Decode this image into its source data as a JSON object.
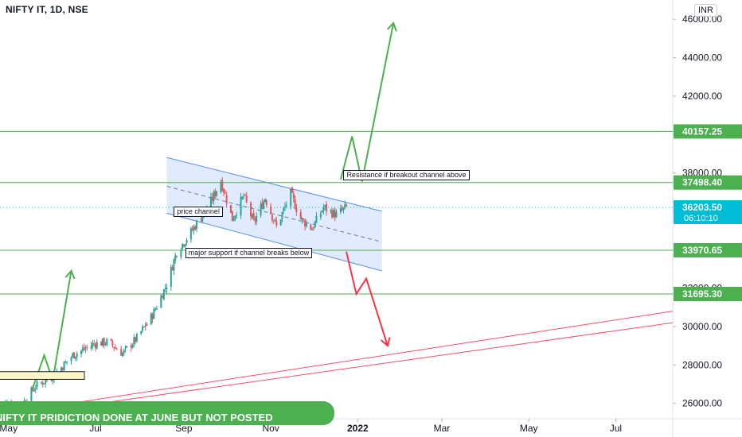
{
  "chart_data": {
    "type": "candlestick",
    "title": "NIFTY IT, 1D, NSE",
    "unit": "INR",
    "y_axis": {
      "ticks": [
        26000,
        28000,
        30000,
        32000,
        34000,
        36000,
        38000,
        40000,
        42000,
        44000,
        46000
      ],
      "tick_labels": [
        "26000.00",
        "28000.00",
        "30000.00",
        "32000.00",
        "34000.00",
        "36000.00",
        "38000.00",
        "40000.00",
        "42000.00",
        "44000.00",
        "46000.00"
      ],
      "range": [
        25200,
        47000
      ]
    },
    "x_axis": {
      "ticks": [
        "2021-05-01",
        "2021-07-01",
        "2021-09-01",
        "2021-11-01",
        "2022-01-01",
        "2022-03-01",
        "2022-05-01",
        "2022-07-01"
      ],
      "tick_labels": [
        "May",
        "Jul",
        "Sep",
        "Nov",
        "2022",
        "Mar",
        "May",
        "Jul"
      ],
      "range": [
        "2021-04-25",
        "2022-08-10"
      ]
    },
    "price_levels": [
      {
        "label": "40157.25",
        "value": 40157.25,
        "color": "#4caf50"
      },
      {
        "label": "37498.40",
        "value": 37498.4,
        "color": "#4caf50"
      },
      {
        "label": "33970.65",
        "value": 33970.65,
        "color": "#4caf50"
      },
      {
        "label": "31695.30",
        "value": 31695.3,
        "color": "#4caf50"
      }
    ],
    "last_price": {
      "label": "36203.50",
      "value": 36203.5,
      "countdown": "06:10:10",
      "color": "#00bcd4"
    },
    "anchors": [
      [
        "2021-04-25",
        26050
      ],
      [
        "2021-05-10",
        25900
      ],
      [
        "2021-05-20",
        26900
      ],
      [
        "2021-06-01",
        27400
      ],
      [
        "2021-06-15",
        28500
      ],
      [
        "2021-06-30",
        29100
      ],
      [
        "2021-07-10",
        29200
      ],
      [
        "2021-07-20",
        28600
      ],
      [
        "2021-07-30",
        29400
      ],
      [
        "2021-08-10",
        30600
      ],
      [
        "2021-08-20",
        32200
      ],
      [
        "2021-08-27",
        33900
      ],
      [
        "2021-09-05",
        34800
      ],
      [
        "2021-09-12",
        35600
      ],
      [
        "2021-09-20",
        36500
      ],
      [
        "2021-09-27",
        37600
      ],
      [
        "2021-10-05",
        35600
      ],
      [
        "2021-10-13",
        36800
      ],
      [
        "2021-10-20",
        35400
      ],
      [
        "2021-10-28",
        36700
      ],
      [
        "2021-11-05",
        35200
      ],
      [
        "2021-11-15",
        36900
      ],
      [
        "2021-11-22",
        35600
      ],
      [
        "2021-11-30",
        35100
      ],
      [
        "2021-12-08",
        36200
      ],
      [
        "2021-12-17",
        35800
      ],
      [
        "2021-12-24",
        36203
      ]
    ],
    "channel": {
      "start": "2021-08-20",
      "end": "2022-01-18",
      "upper": [
        38800,
        36000
      ],
      "lower": [
        35900,
        32900
      ],
      "mid": [
        37300,
        34400
      ],
      "fill": "#dbe8fd",
      "stroke": "#5b8def"
    },
    "scenario_up": [
      [
        "2021-12-20",
        37650
      ],
      [
        "2021-12-28",
        39900
      ],
      [
        "2022-01-04",
        37550
      ],
      [
        "2022-01-26",
        45800
      ]
    ],
    "scenario_down": [
      [
        "2021-12-24",
        33900
      ],
      [
        "2021-12-31",
        31700
      ],
      [
        "2022-01-07",
        32500
      ],
      [
        "2022-01-22",
        29000
      ]
    ],
    "past_arrow": [
      [
        "2021-05-18",
        26800
      ],
      [
        "2021-05-26",
        28500
      ],
      [
        "2021-06-01",
        27200
      ],
      [
        "2021-06-14",
        32900
      ]
    ],
    "trend_lines": [
      {
        "from": [
          "2021-06-05",
          25900
        ],
        "to": [
          "2022-08-10",
          30800
        ],
        "color": "#f0506e"
      },
      {
        "from": [
          "2021-06-05",
          25700
        ],
        "to": [
          "2022-08-10",
          30200
        ],
        "color": "#f0506e"
      }
    ],
    "annotations": [
      {
        "text": "price channel"
      },
      {
        "text": "Resistance if breakout channel above"
      },
      {
        "text": "major support if channel breaks below"
      }
    ],
    "banner_text": "NIFTY IT PRIDICTION DONE AT JUNE BUT NOT POSTED",
    "colors": {
      "up": "#26a69a",
      "down": "#ef5350",
      "levels": "#4caf50",
      "channel": "#5b8def",
      "last": "#00bcd4"
    }
  }
}
